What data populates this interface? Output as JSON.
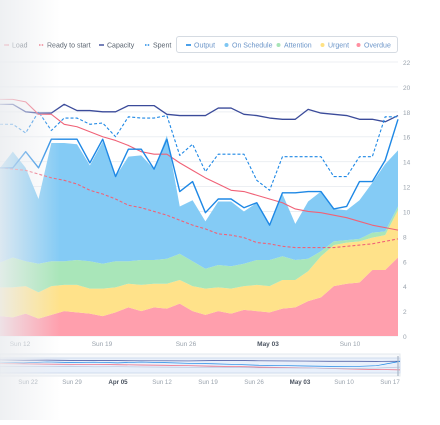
{
  "legend": {
    "left": [
      {
        "label": "Load",
        "color": "#f06277",
        "style": "solid"
      },
      {
        "label": "Ready to start",
        "color": "#f06277",
        "style": "dashed"
      },
      {
        "label": "Capacity",
        "color": "#3b4b9a",
        "style": "solid"
      },
      {
        "label": "Spent",
        "color": "#1e88e5",
        "style": "dashed"
      }
    ],
    "right": [
      {
        "label": "Output",
        "color": "#1e88e5",
        "style": "solid"
      },
      {
        "label": "On Schedule",
        "color": "#7ec6f2",
        "style": "dot"
      },
      {
        "label": "Attention",
        "color": "#a8e4b6",
        "style": "dot"
      },
      {
        "label": "Urgent",
        "color": "#ffe283",
        "style": "dot"
      },
      {
        "label": "Overdue",
        "color": "#ff8fa0",
        "style": "dot"
      }
    ]
  },
  "colors": {
    "overdue": "#ff9fad",
    "urgent": "#ffe28a",
    "attention": "#a9e6b9",
    "on_schedule": "#84cbf5",
    "load": "#f06277",
    "capacity": "#3b4b9a",
    "spent": "#1e88e5",
    "output": "#1e88e5"
  },
  "chart_data": {
    "type": "area",
    "x_ticks": [
      "Sun 12",
      "Sun 19",
      "Sun 26",
      "May 03",
      "Sun 10"
    ],
    "x_ticks_bold": [
      "May 03"
    ],
    "ylim": [
      0,
      22
    ],
    "y_ticks": [
      0,
      2,
      4,
      6,
      8,
      10,
      12,
      14,
      16,
      18,
      20,
      22
    ],
    "grid": true,
    "x": [
      0,
      1,
      2,
      3,
      4,
      5,
      6,
      7,
      8,
      9,
      10,
      11,
      12,
      13,
      14,
      15,
      16,
      17,
      18,
      19,
      20,
      21,
      22,
      23,
      24,
      25,
      26,
      27,
      28,
      29,
      30,
      31
    ],
    "stacked_series": [
      {
        "name": "Overdue",
        "values": [
          1.6,
          1.5,
          1.8,
          1.4,
          1.7,
          2.0,
          1.9,
          1.8,
          1.6,
          1.9,
          2.3,
          2.0,
          2.3,
          2.2,
          2.6,
          2.0,
          1.7,
          2.0,
          1.8,
          2.1,
          2.0,
          1.9,
          2.2,
          2.3,
          2.8,
          3.1,
          4.0,
          4.2,
          4.3,
          5.3,
          5.3,
          6.3
        ]
      },
      {
        "name": "Urgent",
        "values": [
          2.3,
          2.4,
          2.2,
          2.1,
          2.3,
          2.1,
          2.2,
          2.0,
          2.2,
          2.0,
          1.9,
          2.1,
          1.9,
          2.0,
          1.9,
          2.0,
          2.1,
          1.9,
          2.0,
          1.9,
          2.1,
          2.1,
          2.3,
          2.2,
          2.4,
          3.3,
          3.3,
          3.3,
          3.3,
          2.6,
          2.8,
          3.8
        ]
      },
      {
        "name": "Attention",
        "values": [
          2.0,
          2.4,
          2.0,
          2.3,
          2.0,
          1.9,
          2.0,
          2.2,
          2.0,
          2.1,
          1.8,
          2.0,
          1.9,
          2.0,
          2.1,
          2.0,
          1.6,
          1.8,
          1.8,
          1.8,
          2.0,
          2.1,
          1.9,
          1.6,
          1.0,
          0.4,
          0.3,
          0.2,
          0.2,
          0.4,
          0.3,
          0.3
        ]
      },
      {
        "name": "On Schedule",
        "values": [
          7.6,
          8.5,
          7.5,
          5.2,
          9.5,
          9.5,
          9.3,
          7.7,
          9.8,
          6.8,
          8.4,
          8.4,
          7.3,
          9.9,
          3.8,
          4.9,
          3.8,
          5.1,
          5.2,
          4.2,
          4.6,
          2.8,
          5.0,
          2.9,
          4.6,
          4.8,
          2.6,
          2.4,
          3.1,
          4.0,
          5.4,
          4.5
        ]
      }
    ],
    "line_series": [
      {
        "name": "Capacity",
        "values": [
          18.6,
          18.6,
          18.0,
          17.9,
          17.9,
          18.6,
          18.1,
          18.1,
          18.0,
          18.0,
          18.5,
          18.5,
          18.5,
          17.8,
          17.7,
          17.7,
          17.7,
          18.3,
          18.3,
          17.8,
          17.7,
          17.5,
          17.4,
          17.4,
          18.2,
          17.9,
          17.8,
          17.7,
          17.4,
          17.4,
          17.2,
          17.7
        ]
      },
      {
        "name": "Spent",
        "values": [
          17.0,
          17.0,
          16.3,
          18.0,
          16.5,
          17.5,
          17.5,
          17.0,
          17.1,
          16.0,
          17.6,
          17.5,
          17.5,
          17.7,
          14.5,
          15.4,
          13.2,
          14.6,
          14.6,
          14.6,
          12.5,
          11.7,
          14.4,
          14.4,
          14.4,
          14.4,
          12.8,
          12.8,
          14.4,
          14.4,
          17.6,
          17.6
        ]
      },
      {
        "name": "Load",
        "values": [
          19.0,
          19.0,
          18.8,
          17.8,
          17.8,
          17.0,
          16.8,
          16.4,
          16.0,
          15.7,
          15.3,
          14.8,
          14.6,
          14.6,
          13.9,
          13.3,
          12.7,
          12.2,
          11.7,
          11.6,
          11.3,
          11.0,
          10.7,
          10.2,
          10.0,
          9.9,
          9.7,
          9.5,
          9.2,
          8.9,
          8.7,
          8.5
        ]
      },
      {
        "name": "Ready to start",
        "values": [
          13.5,
          13.4,
          13.3,
          13.0,
          12.7,
          12.5,
          12.2,
          11.7,
          11.4,
          11.0,
          10.5,
          10.3,
          10.0,
          9.7,
          9.3,
          8.9,
          8.6,
          8.2,
          8.1,
          7.9,
          7.5,
          7.4,
          7.2,
          7.1,
          7.1,
          7.1,
          7.1,
          7.2,
          7.3,
          7.4,
          7.6,
          7.8
        ]
      },
      {
        "name": "Output",
        "values": [
          13.5,
          13.5,
          14.8,
          13.5,
          15.8,
          15.8,
          15.8,
          13.9,
          15.8,
          12.8,
          15.0,
          15.0,
          13.4,
          15.8,
          11.6,
          12.4,
          9.9,
          11.0,
          11.0,
          10.3,
          10.7,
          8.9,
          11.5,
          11.5,
          11.6,
          11.6,
          10.2,
          10.4,
          12.4,
          12.4,
          14.1,
          17.4
        ]
      }
    ]
  },
  "navigator": {
    "ticks": [
      "Sun 22",
      "Sun 29",
      "Apr 05",
      "Sun 12",
      "Sun 19",
      "Sun 26",
      "May 03",
      "Sun 10",
      "Sun 17"
    ],
    "ticks_bold": [
      "Apr 05",
      "May 03"
    ]
  }
}
